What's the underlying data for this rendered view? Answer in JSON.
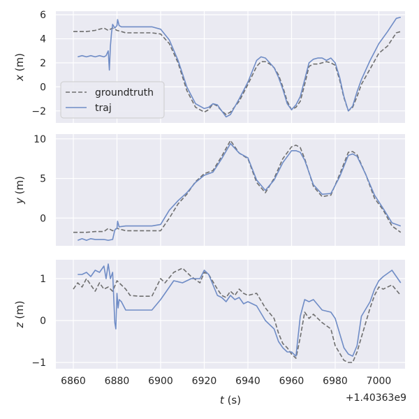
{
  "chart_data": {
    "type": "line",
    "xlim": [
      6852,
      7012
    ],
    "x_ticks": [
      6860,
      6880,
      6900,
      6920,
      6940,
      6960,
      6980,
      7000
    ],
    "x_tick_labels": [
      "6860",
      "6880",
      "6900",
      "6920",
      "6940",
      "6960",
      "6980",
      "7000"
    ],
    "x_offset_label": "+1.40363e9",
    "xlabel": "t (s)",
    "xlabel_var": "t",
    "xlabel_unit": " (s)",
    "colors": {
      "groundtruth": "#6e6e6e",
      "traj": "#6f8cc6"
    },
    "legend": {
      "placement": "lower-left of top panel",
      "entries": [
        "groundtruth",
        "traj"
      ]
    },
    "panels": [
      {
        "ylabel_var": "x",
        "ylabel_unit": " (m)",
        "ylim": [
          -3,
          6.3
        ],
        "y_ticks": [
          6,
          4,
          2,
          0,
          -2
        ],
        "y_tick_labels": [
          "6",
          "4",
          "2",
          "0",
          "−2"
        ],
        "series": [
          {
            "name": "groundtruth",
            "style": "dashed",
            "x": [
              6860,
              6866,
              6870,
              6874,
              6876,
              6878,
              6880,
              6882,
              6884,
              6890,
              6896,
              6900,
              6904,
              6908,
              6912,
              6916,
              6920,
              6922,
              6924,
              6926,
              6928,
              6930,
              6932,
              6936,
              6940,
              6944,
              6946,
              6948,
              6950,
              6952,
              6954,
              6956,
              6958,
              6960,
              6962,
              6964,
              6966,
              6968,
              6970,
              6972,
              6974,
              6976,
              6978,
              6980,
              6982,
              6984,
              6986,
              6988,
              6990,
              6992,
              6996,
              7000,
              7004,
              7008,
              7010
            ],
            "y": [
              4.6,
              4.6,
              4.7,
              4.9,
              4.7,
              4.9,
              4.7,
              4.6,
              4.5,
              4.5,
              4.5,
              4.4,
              3.6,
              2.0,
              -0.3,
              -1.7,
              -2.1,
              -1.9,
              -1.4,
              -1.6,
              -2.0,
              -2.3,
              -2.1,
              -1.2,
              0.2,
              1.7,
              2.1,
              2.1,
              1.9,
              1.6,
              1.0,
              0.0,
              -1.2,
              -1.9,
              -1.7,
              -1.2,
              0.2,
              1.7,
              1.9,
              1.9,
              2.0,
              2.1,
              2.0,
              1.8,
              0.6,
              -0.9,
              -2.0,
              -1.7,
              -0.8,
              0.2,
              1.5,
              2.8,
              3.4,
              4.5,
              4.6
            ]
          },
          {
            "name": "traj",
            "style": "solid",
            "x": [
              6862,
              6864,
              6866,
              6868,
              6870,
              6872,
              6874,
              6875,
              6876,
              6876.5,
              6877,
              6877.5,
              6878,
              6879,
              6880,
              6880.3,
              6881,
              6882,
              6884,
              6890,
              6896,
              6900,
              6904,
              6908,
              6912,
              6916,
              6920,
              6922,
              6924,
              6926,
              6928,
              6930,
              6932,
              6936,
              6940,
              6944,
              6946,
              6948,
              6950,
              6952,
              6954,
              6956,
              6958,
              6960,
              6962,
              6964,
              6966,
              6968,
              6970,
              6972,
              6974,
              6976,
              6978,
              6980,
              6982,
              6984,
              6986,
              6988,
              6990,
              6992,
              6996,
              7000,
              7004,
              7008,
              7010
            ],
            "y": [
              2.5,
              2.6,
              2.5,
              2.6,
              2.5,
              2.6,
              2.5,
              2.6,
              3.0,
              1.4,
              3.4,
              4.5,
              5.2,
              4.9,
              5.1,
              5.6,
              5.1,
              5.0,
              5.0,
              5.0,
              5.0,
              4.8,
              3.9,
              2.2,
              0.0,
              -1.4,
              -1.8,
              -1.7,
              -1.4,
              -1.5,
              -2.0,
              -2.5,
              -2.3,
              -1.0,
              0.4,
              2.2,
              2.5,
              2.4,
              2.0,
              1.6,
              0.8,
              -0.2,
              -1.4,
              -1.9,
              -1.5,
              -0.8,
              0.6,
              2.0,
              2.3,
              2.4,
              2.4,
              2.2,
              2.4,
              2.0,
              0.8,
              -0.8,
              -2.0,
              -1.6,
              -0.4,
              0.6,
              2.2,
              3.6,
              4.6,
              5.7,
              5.8
            ]
          }
        ]
      },
      {
        "ylabel_var": "y",
        "ylabel_unit": " (m)",
        "ylim": [
          -3.5,
          10.6
        ],
        "y_ticks": [
          10,
          5,
          0
        ],
        "y_tick_labels": [
          "10",
          "5",
          "0"
        ],
        "series": [
          {
            "name": "groundtruth",
            "style": "dashed",
            "x": [
              6860,
              6866,
              6870,
              6874,
              6876,
              6878,
              6880,
              6884,
              6890,
              6896,
              6900,
              6904,
              6908,
              6912,
              6916,
              6920,
              6924,
              6928,
              6932,
              6936,
              6940,
              6944,
              6948,
              6952,
              6956,
              6960,
              6962,
              6964,
              6966,
              6970,
              6974,
              6978,
              6982,
              6986,
              6988,
              6990,
              6994,
              6998,
              7002,
              7006,
              7010
            ],
            "y": [
              -1.8,
              -1.8,
              -1.7,
              -1.7,
              -1.3,
              -1.6,
              -1.3,
              -1.6,
              -1.6,
              -1.6,
              -1.6,
              0.0,
              1.8,
              3.0,
              4.6,
              5.6,
              6.0,
              7.8,
              9.8,
              8.2,
              7.5,
              4.5,
              3.2,
              5.0,
              7.5,
              9.0,
              9.2,
              8.9,
              7.5,
              4.0,
              2.7,
              2.9,
              5.5,
              8.3,
              8.4,
              8.0,
              5.5,
              2.5,
              1.0,
              -1.0,
              -1.8
            ]
          },
          {
            "name": "traj",
            "style": "solid",
            "x": [
              6862,
              6864,
              6866,
              6868,
              6870,
              6872,
              6874,
              6876,
              6878,
              6879,
              6880,
              6880.3,
              6881,
              6884,
              6890,
              6896,
              6900,
              6904,
              6908,
              6912,
              6916,
              6920,
              6924,
              6928,
              6932,
              6936,
              6940,
              6944,
              6948,
              6952,
              6956,
              6960,
              6962,
              6964,
              6966,
              6970,
              6974,
              6978,
              6982,
              6986,
              6988,
              6990,
              6994,
              6998,
              7002,
              7006,
              7010
            ],
            "y": [
              -2.8,
              -2.6,
              -2.8,
              -2.6,
              -2.7,
              -2.7,
              -2.7,
              -2.8,
              -2.7,
              -1.5,
              -1.3,
              -0.4,
              -1.1,
              -1.0,
              -1.0,
              -1.0,
              -0.8,
              1.0,
              2.2,
              3.2,
              4.5,
              5.4,
              5.8,
              7.5,
              9.4,
              8.2,
              7.6,
              4.8,
              3.5,
              4.8,
              7.0,
              8.5,
              8.5,
              8.3,
              7.3,
              4.2,
              3.0,
              3.1,
              5.2,
              7.9,
              8.1,
              7.8,
              5.5,
              2.9,
              1.2,
              -0.6,
              -1.0
            ]
          }
        ]
      },
      {
        "ylabel_var": "z",
        "ylabel_unit": " (m)",
        "ylim": [
          -1.15,
          1.45
        ],
        "y_ticks": [
          1,
          0,
          -1
        ],
        "y_tick_labels": [
          "1",
          "0",
          "−1"
        ],
        "series": [
          {
            "name": "groundtruth",
            "style": "dashed",
            "x": [
              6860,
              6862,
              6864,
              6866,
              6868,
              6870,
              6872,
              6874,
              6876,
              6878,
              6880,
              6882,
              6884,
              6886,
              6890,
              6896,
              6900,
              6902,
              6906,
              6910,
              6914,
              6918,
              6920,
              6922,
              6926,
              6928,
              6930,
              6932,
              6934,
              6936,
              6938,
              6940,
              6944,
              6948,
              6952,
              6954,
              6956,
              6958,
              6960,
              6962,
              6964,
              6966,
              6968,
              6970,
              6974,
              6978,
              6980,
              6984,
              6986,
              6988,
              6990,
              6992,
              6996,
              6998,
              7000,
              7002,
              7006,
              7010
            ],
            "y": [
              0.75,
              0.9,
              0.8,
              1.0,
              0.85,
              0.7,
              0.9,
              0.75,
              0.8,
              0.7,
              0.95,
              0.85,
              0.75,
              0.6,
              0.58,
              0.58,
              1.0,
              0.9,
              1.15,
              1.25,
              1.05,
              0.9,
              1.15,
              1.1,
              0.75,
              0.6,
              0.55,
              0.7,
              0.6,
              0.75,
              0.65,
              0.6,
              0.65,
              0.3,
              0.05,
              -0.3,
              -0.55,
              -0.65,
              -0.8,
              -0.9,
              -0.4,
              0.2,
              0.05,
              0.15,
              -0.05,
              -0.2,
              -0.6,
              -0.95,
              -1.0,
              -1.0,
              -0.75,
              -0.4,
              0.3,
              0.6,
              0.8,
              0.75,
              0.85,
              0.6
            ]
          },
          {
            "name": "traj",
            "style": "solid",
            "x": [
              6862,
              6864,
              6866,
              6868,
              6870,
              6872,
              6874,
              6875,
              6876,
              6877,
              6878,
              6879,
              6879.5,
              6880,
              6880.5,
              6881,
              6882,
              6884,
              6890,
              6896,
              6900,
              6902,
              6906,
              6910,
              6914,
              6918,
              6920,
              6922,
              6926,
              6928,
              6930,
              6932,
              6934,
              6936,
              6938,
              6940,
              6944,
              6948,
              6952,
              6954,
              6956,
              6958,
              6960,
              6962,
              6964,
              6966,
              6968,
              6970,
              6974,
              6978,
              6980,
              6984,
              6986,
              6988,
              6990,
              6992,
              6996,
              6998,
              7000,
              7002,
              7006,
              7010
            ],
            "y": [
              1.1,
              1.1,
              1.15,
              1.05,
              1.2,
              1.15,
              1.3,
              1.0,
              1.35,
              1.0,
              1.15,
              -0.05,
              -0.2,
              0.65,
              0.3,
              0.5,
              0.45,
              0.25,
              0.25,
              0.25,
              0.5,
              0.65,
              0.95,
              0.9,
              1.0,
              1.0,
              1.2,
              1.1,
              0.6,
              0.55,
              0.45,
              0.6,
              0.5,
              0.55,
              0.4,
              0.45,
              0.35,
              0.0,
              -0.2,
              -0.5,
              -0.65,
              -0.75,
              -0.75,
              -0.85,
              0.1,
              0.5,
              0.45,
              0.5,
              0.25,
              0.2,
              0.05,
              -0.65,
              -0.8,
              -0.85,
              -0.6,
              0.1,
              0.45,
              0.75,
              0.95,
              1.05,
              1.2,
              0.9
            ]
          }
        ]
      }
    ]
  }
}
